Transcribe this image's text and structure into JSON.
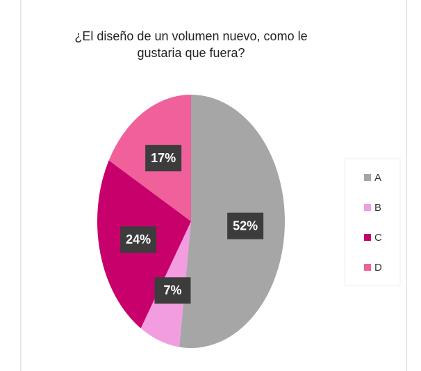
{
  "chart_data": {
    "type": "pie",
    "title": "¿El diseño de un volumen nuevo, como le gustaria que fuera?",
    "categories": [
      "A",
      "B",
      "C",
      "D"
    ],
    "values": [
      52,
      7,
      24,
      17
    ],
    "value_labels": [
      "52%",
      "7%",
      "24%",
      "17%"
    ],
    "colors": [
      "#a6a6a6",
      "#f29ddf",
      "#c8006b",
      "#f0609a"
    ],
    "legend": "right"
  }
}
